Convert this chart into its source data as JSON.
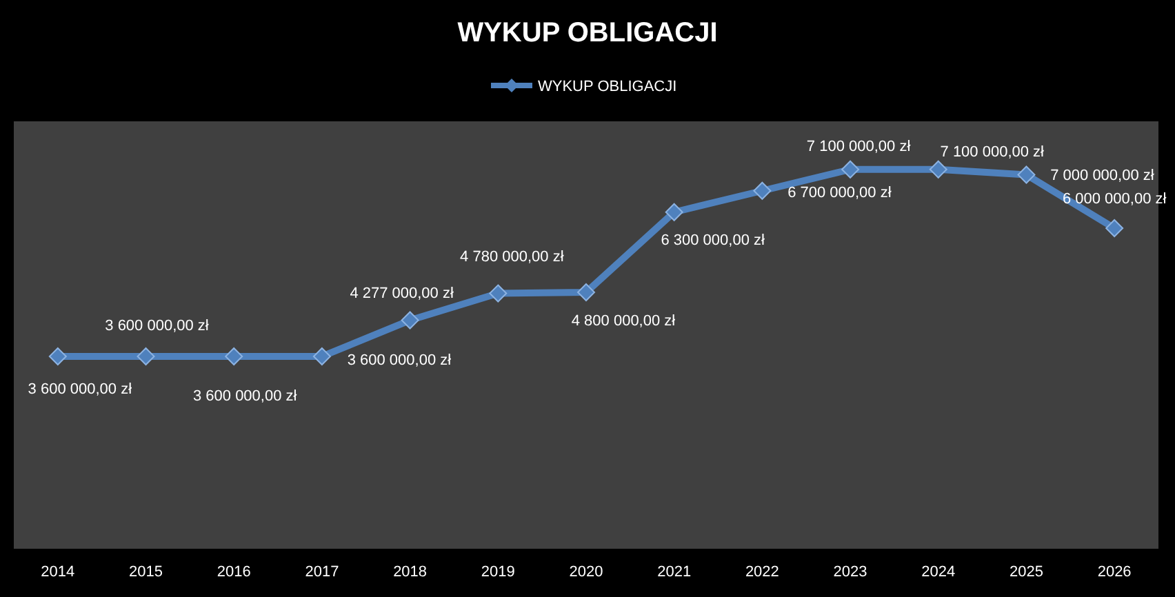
{
  "chart_data": {
    "type": "line",
    "title": "WYKUP OBLIGACJI",
    "categories": [
      "2014",
      "2015",
      "2016",
      "2017",
      "2018",
      "2019",
      "2020",
      "2021",
      "2022",
      "2023",
      "2024",
      "2025",
      "2026"
    ],
    "series": [
      {
        "name": "WYKUP OBLIGACJI",
        "color": "#4f81bd",
        "values": [
          3600000,
          3600000,
          3600000,
          3600000,
          4277000,
          4780000,
          4800000,
          6300000,
          6700000,
          7100000,
          7100000,
          7000000,
          6000000
        ],
        "value_labels": [
          "3 600 000,00 zł",
          "3 600 000,00 zł",
          "3 600 000,00 zł",
          "3 600 000,00 zł",
          "4 277 000,00 zł",
          "4 780 000,00 zł",
          "4 800 000,00 zł",
          "6 300 000,00 zł",
          "6 700 000,00 zł",
          "7 100 000,00 zł",
          "7 100 000,00 zł",
          "7 000 000,00 zł",
          "6 000 000,00 zł"
        ]
      }
    ],
    "ylim": [
      0,
      8000000
    ],
    "tick_labels": "x",
    "legend": "top",
    "marker": "diamond",
    "line_style": "solid"
  }
}
